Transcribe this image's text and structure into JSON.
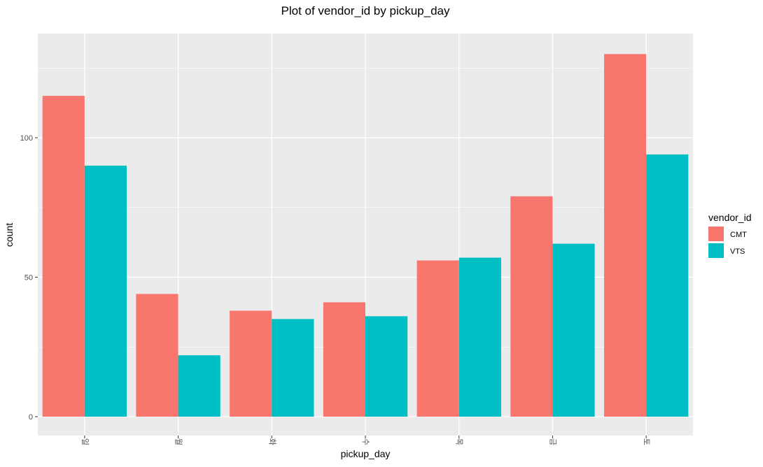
{
  "chart_data": {
    "type": "bar",
    "title": "Plot of vendor_id by pickup_day",
    "xlabel": "pickup_day",
    "ylabel": "count",
    "categories": [
      "일",
      "월",
      "화",
      "수",
      "목",
      "금",
      "토"
    ],
    "series": [
      {
        "name": "CMT",
        "color": "#F8766D",
        "values": [
          115,
          44,
          38,
          41,
          56,
          79,
          130
        ]
      },
      {
        "name": "VTS",
        "color": "#00BFC4",
        "values": [
          90,
          22,
          35,
          36,
          57,
          62,
          94
        ]
      }
    ],
    "ylim": [
      0,
      137
    ],
    "yticks": [
      0,
      50,
      100
    ],
    "grid": true,
    "legend": {
      "title": "vendor_id",
      "position": "right"
    }
  }
}
